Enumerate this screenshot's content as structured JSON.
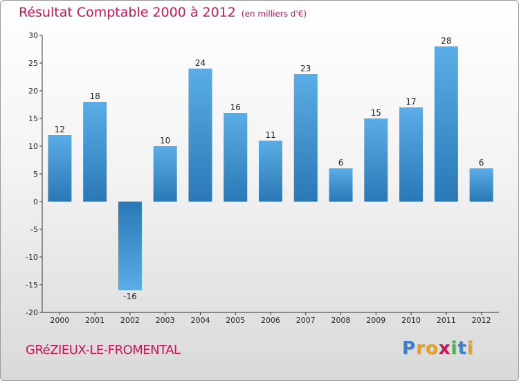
{
  "header": {
    "title": "Résultat Comptable 2000 à 2012",
    "subtitle": "(en milliers d'€)"
  },
  "footer": {
    "town": "GRéZIEUX-LE-FROMENTAL",
    "logo_letters": [
      "P",
      "r",
      "o",
      "x",
      "i",
      "t",
      "i"
    ]
  },
  "colors": {
    "title": "#c2185b",
    "bar_light": "#5aade6",
    "bar_dark": "#2a78b6",
    "logo": [
      "#3d7fc8",
      "#e8a020",
      "#e8a020",
      "#c2185b",
      "#4caf50",
      "#3d7fc8",
      "#e8a020"
    ]
  },
  "chart_data": {
    "type": "bar",
    "title": "Résultat Comptable 2000 à 2012",
    "subtitle": "(en milliers d'€)",
    "xlabel": "",
    "ylabel": "",
    "categories": [
      "2000",
      "2001",
      "2002",
      "2003",
      "2004",
      "2005",
      "2006",
      "2007",
      "2008",
      "2009",
      "2010",
      "2011",
      "2012"
    ],
    "values": [
      12,
      18,
      -16,
      10,
      24,
      16,
      11,
      23,
      6,
      15,
      17,
      28,
      6
    ],
    "value_labels": [
      "12",
      "18",
      "-16",
      "10",
      "24",
      "16",
      "11",
      "23",
      "6",
      "15",
      "17",
      "28",
      "6"
    ],
    "ylim": [
      -20,
      30
    ],
    "yticks": [
      30,
      25,
      20,
      15,
      10,
      5,
      0,
      -5,
      -10,
      -15,
      -20
    ],
    "grid": false,
    "legend": "none"
  }
}
